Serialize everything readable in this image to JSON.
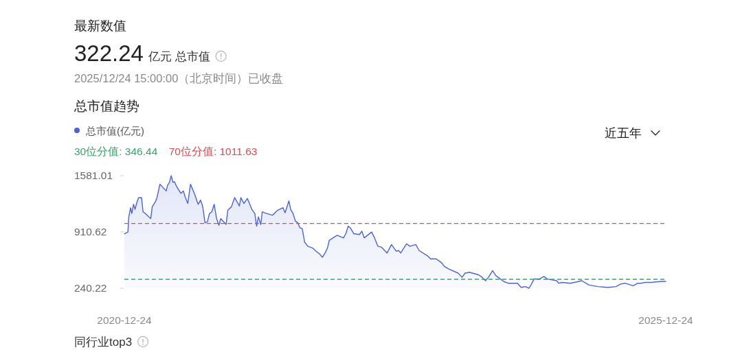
{
  "chart_data": {
    "type": "area",
    "title": "总市值趋势",
    "annotations": [
      "最新数值",
      "322.24",
      "亿元 总市值",
      "2025/12/24 15:00:00（北京时间）已收盘",
      "近五年",
      "同行业top3"
    ],
    "legend": "top left",
    "xlim": [
      "2020-12-24",
      "2025-12-24"
    ],
    "xticks": [
      "2020-12-24",
      "2025-12-24"
    ],
    "ylim": [
      240.22,
      1581.01
    ],
    "yticks": [
      240.22,
      910.62,
      1581.01
    ],
    "x": [
      "2020-12-24",
      "2021-01-05",
      "2021-01-08",
      "2021-01-14",
      "2021-01-18",
      "2021-01-24",
      "2021-01-29",
      "2021-02-04",
      "2021-02-10",
      "2021-02-20",
      "2021-02-25",
      "2021-03-05",
      "2021-03-23",
      "2021-03-28",
      "2021-04-09",
      "2021-04-13",
      "2021-04-23",
      "2021-05-14",
      "2021-05-19",
      "2021-05-25",
      "2021-05-31",
      "2021-06-06",
      "2021-06-11",
      "2021-06-17",
      "2021-07-03",
      "2021-07-11",
      "2021-07-17",
      "2021-07-26",
      "2021-08-04",
      "2021-08-17",
      "2021-08-22",
      "2021-08-30",
      "2021-09-07",
      "2021-09-14",
      "2021-09-22",
      "2021-09-30",
      "2021-10-07",
      "2021-10-15",
      "2021-10-23",
      "2021-10-31",
      "2021-11-08",
      "2021-11-14",
      "2021-12-02",
      "2021-12-08",
      "2021-12-20",
      "2021-12-31",
      "2022-01-16",
      "2022-01-21",
      "2022-01-31",
      "2022-02-12",
      "2022-02-27",
      "2022-03-09",
      "2022-03-15",
      "2022-03-21",
      "2022-03-29",
      "2022-04-03",
      "2022-04-18",
      "2022-05-08",
      "2022-05-25",
      "2022-06-12",
      "2022-06-19",
      "2022-07-02",
      "2022-07-08",
      "2022-07-16",
      "2022-07-24",
      "2022-08-01",
      "2022-08-08",
      "2022-08-16",
      "2022-08-24",
      "2022-09-04",
      "2022-09-20",
      "2022-10-02",
      "2022-10-13",
      "2022-10-23",
      "2022-11-01",
      "2022-11-09",
      "2022-11-15",
      "2022-12-02",
      "2022-12-12",
      "2023-01-02",
      "2023-01-10",
      "2023-01-18",
      "2023-01-25",
      "2023-02-06",
      "2023-02-25",
      "2023-03-05",
      "2023-03-13",
      "2023-04-07",
      "2023-04-17",
      "2023-04-28",
      "2023-05-10",
      "2023-05-29",
      "2023-06-13",
      "2023-06-29",
      "2023-07-07",
      "2023-07-14",
      "2023-08-03",
      "2023-08-14",
      "2023-09-03",
      "2023-09-14",
      "2023-10-11",
      "2023-10-23",
      "2023-11-11",
      "2023-11-19",
      "2023-11-30",
      "2023-12-08",
      "2023-12-23",
      "2024-01-24",
      "2024-02-06",
      "2024-02-16",
      "2024-03-02",
      "2024-04-02",
      "2024-04-14",
      "2024-04-25",
      "2024-05-05",
      "2024-05-19",
      "2024-05-30",
      "2024-06-11",
      "2024-06-26",
      "2024-07-11",
      "2024-08-11",
      "2024-08-23",
      "2024-09-07",
      "2024-09-19",
      "2024-09-27",
      "2024-10-06",
      "2024-10-24",
      "2024-11-08",
      "2024-11-20",
      "2024-12-21",
      "2024-12-28",
      "2025-01-09",
      "2025-02-05",
      "2025-03-04",
      "2025-03-16",
      "2025-04-08",
      "2025-05-09",
      "2025-06-12",
      "2025-07-09",
      "2025-07-25",
      "2025-08-09",
      "2025-09-05",
      "2025-09-21",
      "2025-10-02",
      "2025-10-14",
      "2025-11-06",
      "2025-12-03",
      "2025-12-24"
    ],
    "series": [
      {
        "name": "总市值(亿元)",
        "color": "#4b63d3",
        "values": [
          890,
          910,
          1090,
          1200,
          1130,
          1240,
          1180,
          1260,
          1320,
          1320,
          1150,
          1130,
          1070,
          1210,
          1280,
          1320,
          1480,
          1400,
          1470,
          1500,
          1581.01,
          1500,
          1510,
          1460,
          1370,
          1400,
          1330,
          1250,
          1480,
          1370,
          1320,
          1240,
          1290,
          1220,
          1020,
          1030,
          1130,
          1150,
          1240,
          1070,
          990,
          1070,
          1000,
          1170,
          1210,
          1320,
          1220,
          1320,
          1250,
          1310,
          1180,
          1130,
          980,
          1090,
          1000,
          1150,
          1130,
          1110,
          1170,
          1200,
          1140,
          1280,
          1180,
          1130,
          1040,
          1020,
          960,
          950,
          790,
          740,
          720,
          680,
          650,
          610,
          660,
          720,
          810,
          850,
          870,
          840,
          890,
          980,
          960,
          890,
          880,
          920,
          840,
          910,
          840,
          740,
          730,
          660,
          760,
          680,
          690,
          660,
          770,
          740,
          760,
          690,
          630,
          590,
          590,
          570,
          540,
          500,
          470,
          420,
          370,
          420,
          430,
          400,
          370,
          330,
          370,
          450,
          390,
          360,
          320,
          300,
          300,
          250,
          260,
          240.22,
          290,
          350,
          350,
          380,
          350,
          330,
          300,
          310,
          300,
          320,
          330,
          280,
          260,
          250,
          260,
          290,
          300,
          270,
          300,
          300,
          310,
          310,
          320,
          322.24
        ]
      }
    ],
    "ref_lines": [
      {
        "axis": "y",
        "value": 346.44,
        "label": "30位分值: 346.44",
        "color": "#3aa26a",
        "line_style": "dashed"
      },
      {
        "axis": "y",
        "value": 1011.63,
        "label": "70位分值: 1011.63",
        "color": "#dc4b52",
        "line_style": "dashed"
      }
    ]
  }
}
